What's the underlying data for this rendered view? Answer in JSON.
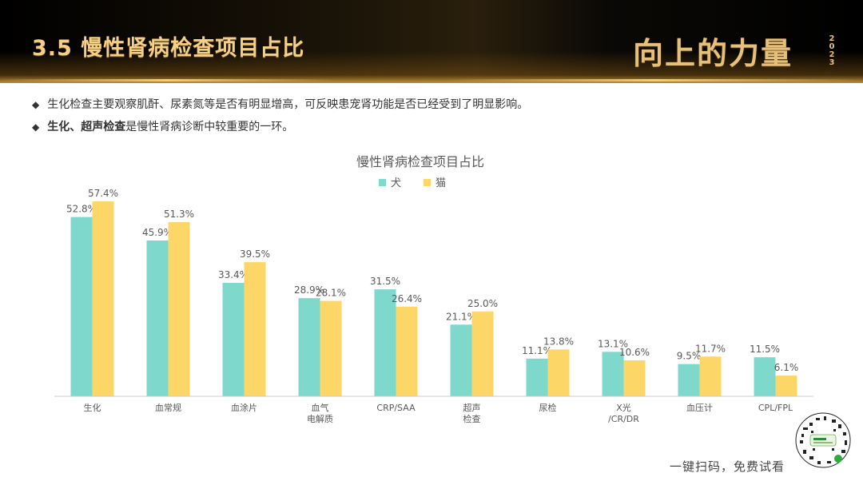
{
  "header": {
    "title": "3.5 慢性肾病检查项目占比",
    "brand": "向上的力量",
    "brand_year": "2023"
  },
  "bullets": [
    {
      "text": "生化检查主要观察肌酐、尿素氮等是否有明显增高，可反映患宠肾功能是否已经受到了明显影响。"
    },
    {
      "strong": "生化、超声检查",
      "text": "是慢性肾病诊断中较重要的一环。"
    }
  ],
  "footer": {
    "qr_caption": "一键扫码，免费试看"
  },
  "colors": {
    "dog": "#7fd8cc",
    "cat": "#fcd667",
    "axis": "#cccccc",
    "label": "#595959"
  },
  "chart_data": {
    "type": "bar",
    "title": "慢性肾病检查项目占比",
    "categories": [
      "生化",
      "血常规",
      "血涂片",
      "血气\n电解质",
      "CRP/SAA",
      "超声\n检查",
      "尿检",
      "X光\n/CR/DR",
      "血压计",
      "CPL/FPL"
    ],
    "series": [
      {
        "name": "犬",
        "values": [
          52.8,
          45.9,
          33.4,
          28.9,
          31.5,
          21.1,
          11.1,
          13.1,
          9.5,
          11.5
        ],
        "labels": [
          "52.8%",
          "45.9%",
          "33.4%",
          "28.9%",
          "31.5%",
          "21.1%",
          "11.1%",
          "13.1%",
          "9.5%",
          "11.5%"
        ]
      },
      {
        "name": "猫",
        "values": [
          57.4,
          51.3,
          39.5,
          28.1,
          26.4,
          25.0,
          13.8,
          10.6,
          11.7,
          6.1
        ],
        "labels": [
          "57.4%",
          "51.3%",
          "39.5%",
          "28.1%",
          "26.4%",
          "25.0%",
          "13.8%",
          "10.6%",
          "11.7%",
          "6.1%"
        ]
      }
    ],
    "legend": "top",
    "ylim": [
      0,
      60
    ],
    "grid": false
  }
}
